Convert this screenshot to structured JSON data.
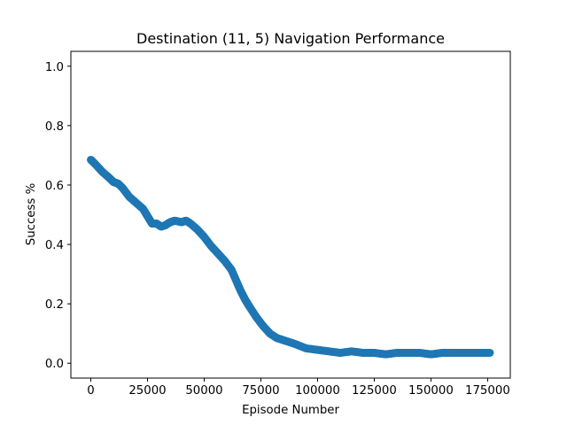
{
  "chart_data": {
    "type": "scatter",
    "title": "Destination (11, 5) Navigation Performance",
    "xlabel": "Episode Number",
    "ylabel": "Success %",
    "xlim": [
      -8800,
      185000
    ],
    "ylim": [
      -0.05,
      1.05
    ],
    "xticks": [
      0,
      25000,
      50000,
      75000,
      100000,
      125000,
      150000,
      175000
    ],
    "yticks": [
      0.0,
      0.2,
      0.4,
      0.6,
      0.8,
      1.0
    ],
    "grid": false,
    "legend": "none",
    "marker_color": "#1f77b4",
    "series": [
      {
        "x": [
          0,
          2000,
          5000,
          8000,
          10000,
          12000,
          14000,
          17000,
          20000,
          23000,
          25000,
          27000,
          29000,
          31000,
          33000,
          35000,
          37000,
          40000,
          42000,
          44000,
          47000,
          50000,
          53000,
          56000,
          59000,
          62000,
          64000,
          66000,
          68000,
          70000,
          73000,
          76000,
          79000,
          82000,
          86000,
          90000,
          95000,
          100000,
          105000,
          110000,
          115000,
          120000,
          125000,
          130000,
          135000,
          140000,
          145000,
          150000,
          155000,
          160000,
          165000,
          170000,
          176000
        ],
        "y": [
          0.685,
          0.67,
          0.645,
          0.625,
          0.61,
          0.605,
          0.59,
          0.56,
          0.54,
          0.52,
          0.495,
          0.47,
          0.47,
          0.46,
          0.465,
          0.475,
          0.48,
          0.475,
          0.48,
          0.47,
          0.45,
          0.425,
          0.395,
          0.37,
          0.345,
          0.315,
          0.28,
          0.245,
          0.215,
          0.19,
          0.155,
          0.125,
          0.1,
          0.085,
          0.075,
          0.065,
          0.05,
          0.045,
          0.04,
          0.035,
          0.04,
          0.035,
          0.035,
          0.03,
          0.035,
          0.035,
          0.035,
          0.03,
          0.035,
          0.035,
          0.035,
          0.035,
          0.035
        ]
      }
    ]
  }
}
